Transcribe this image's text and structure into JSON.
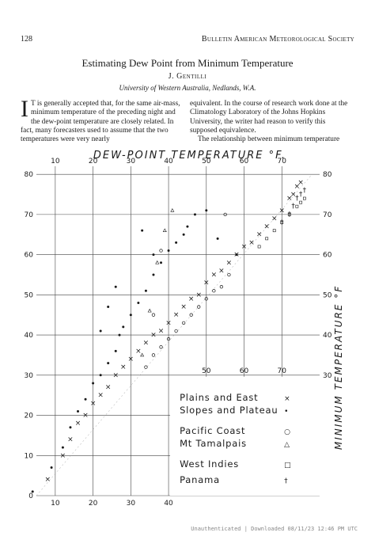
{
  "header": {
    "page_number": "128",
    "journal": "Bulletin American Meteorological Society"
  },
  "title": "Estimating Dew Point from Minimum Temperature",
  "author": "J. Gentilli",
  "affiliation": "University of Western Australia, Nedlands, W.A.",
  "body": {
    "dropcap": "I",
    "left_text": "T is generally accepted that, for the same air-mass, minimum temperature of the preceding night and the dew-point temperature are closely related. In fact, many forecasters used to assume that the two temperatures were very nearly",
    "right_text_1": "equivalent. In the course of research work done at the Climatology Laboratory of the Johns Hopkins University, the writer had reason to verify this supposed equivalence.",
    "right_text_2": "The relationship between minimum temperature"
  },
  "chart_data": {
    "type": "scatter",
    "title": "DEW-POINT TEMPERATURE °F.",
    "ylabel": "MINIMUM TEMPERATURE °F",
    "xlim": [
      5,
      80
    ],
    "ylim": [
      0,
      82
    ],
    "top_ticks": [
      "10",
      "20",
      "30",
      "40",
      "50",
      "60",
      "70"
    ],
    "bottom_ticks": [
      "10",
      "20",
      "30",
      "40"
    ],
    "inner_bottom_ticks": [
      "50",
      "60",
      "70"
    ],
    "left_ticks": [
      "0",
      "10",
      "20",
      "30",
      "40",
      "50",
      "60",
      "70",
      "80"
    ],
    "right_ticks": [
      "30",
      "40",
      "50",
      "60",
      "70",
      "80"
    ],
    "grid": true,
    "legend": [
      {
        "label": "Plains and East",
        "marker": "×"
      },
      {
        "label": "Slopes and Plateau",
        "marker": "•"
      },
      {
        "label": "Pacific Coast",
        "marker": "○"
      },
      {
        "label": "Mt Tamalpais",
        "marker": "△"
      },
      {
        "label": "West Indies",
        "marker": "□"
      },
      {
        "label": "Panama",
        "marker": "†"
      }
    ],
    "series": [
      {
        "name": "Plains and East",
        "marker": "×",
        "x": [
          8,
          12,
          14,
          16,
          18,
          20,
          22,
          24,
          26,
          28,
          30,
          32,
          34,
          36,
          38,
          40,
          42,
          44,
          46,
          48,
          50,
          52,
          54,
          56,
          58,
          60,
          62,
          64,
          66,
          68,
          70,
          72,
          73,
          74,
          75
        ],
        "y": [
          4,
          10,
          14,
          18,
          20,
          23,
          25,
          27,
          30,
          32,
          34,
          36,
          38,
          40,
          41,
          43,
          45,
          47,
          49,
          50,
          53,
          55,
          56,
          58,
          60,
          62,
          63,
          65,
          67,
          69,
          71,
          74,
          75,
          77,
          78
        ]
      },
      {
        "name": "Slopes and Plateau",
        "marker": "•",
        "x": [
          4,
          9,
          12,
          14,
          16,
          18,
          20,
          22,
          24,
          26,
          27,
          28,
          30,
          32,
          34,
          36,
          38,
          40,
          42,
          44,
          45,
          47,
          50,
          53,
          58,
          22,
          24,
          26,
          33,
          36
        ],
        "y": [
          1,
          7,
          12,
          17,
          21,
          24,
          28,
          30,
          33,
          36,
          40,
          42,
          45,
          48,
          51,
          55,
          58,
          61,
          63,
          65,
          67,
          70,
          71,
          64,
          60,
          41,
          47,
          52,
          66,
          60
        ]
      },
      {
        "name": "Pacific Coast",
        "marker": "○",
        "x": [
          34,
          36,
          38,
          40,
          42,
          44,
          46,
          48,
          50,
          52,
          54,
          56,
          55,
          38,
          36
        ],
        "y": [
          32,
          35,
          37,
          39,
          41,
          43,
          45,
          47,
          49,
          51,
          52,
          55,
          70,
          61,
          45
        ]
      },
      {
        "name": "Mt Tamalpais",
        "marker": "△",
        "x": [
          33,
          35,
          37,
          39,
          41
        ],
        "y": [
          35,
          46,
          58,
          66,
          71
        ]
      },
      {
        "name": "West Indies",
        "marker": "□",
        "x": [
          64,
          66,
          68,
          70,
          72,
          74,
          75,
          76
        ],
        "y": [
          62,
          64,
          66,
          68,
          70,
          72,
          73,
          74
        ]
      },
      {
        "name": "Panama",
        "marker": "†",
        "x": [
          70,
          72,
          73,
          74,
          75,
          76
        ],
        "y": [
          68,
          70,
          72,
          74,
          75,
          76
        ]
      }
    ]
  },
  "footer": "Unauthenticated | Downloaded 08/11/23 12:46 PM UTC"
}
